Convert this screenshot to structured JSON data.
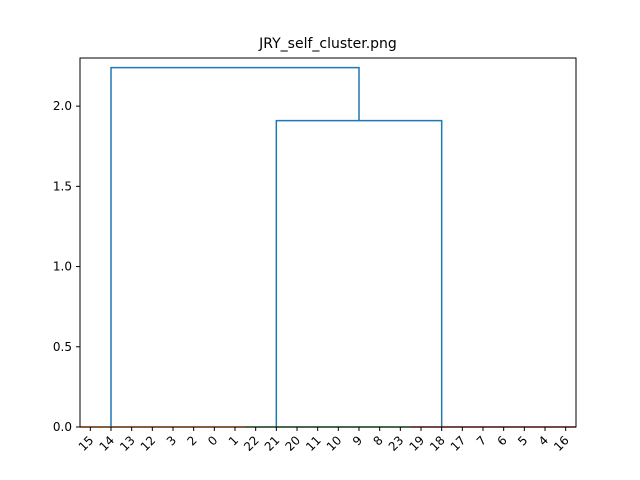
{
  "chart_data": {
    "type": "dendrogram",
    "title": "JRY_self_cluster.png",
    "xlabel": "",
    "ylabel": "",
    "ylim": [
      0,
      2.3
    ],
    "yticks": [
      0.0,
      0.5,
      1.0,
      1.5,
      2.0
    ],
    "ytick_labels": [
      "0.0",
      "0.5",
      "1.0",
      "1.5",
      "2.0"
    ],
    "grid": false,
    "leaf_labels": [
      "15",
      "14",
      "13",
      "12",
      "3",
      "2",
      "0",
      "1",
      "22",
      "21",
      "20",
      "11",
      "10",
      "9",
      "8",
      "23",
      "19",
      "18",
      "17",
      "7",
      "6",
      "5",
      "4",
      "16"
    ],
    "clusters": [
      {
        "name": "",
        "color": "#ff7f0e",
        "leaves": [
          "15",
          "14",
          "13",
          "12",
          "3",
          "2",
          "0",
          "1"
        ],
        "merge_height": 0.0
      },
      {
        "name": "",
        "color": "#2ca02c",
        "leaves": [
          "22",
          "21",
          "20",
          "11",
          "10",
          "9",
          "8",
          "23"
        ],
        "merge_height": 0.0
      },
      {
        "name": "",
        "color": "#d62728",
        "leaves": [
          "19",
          "18",
          "17",
          "7",
          "6",
          "5",
          "4",
          "16"
        ],
        "merge_height": 0.0
      }
    ],
    "links": [
      {
        "left_cluster": 1,
        "right_cluster": 2,
        "height": 1.91,
        "color": "#1f77b4"
      },
      {
        "left_cluster": 0,
        "right_link": 0,
        "height": 2.24,
        "color": "#1f77b4"
      }
    ]
  }
}
